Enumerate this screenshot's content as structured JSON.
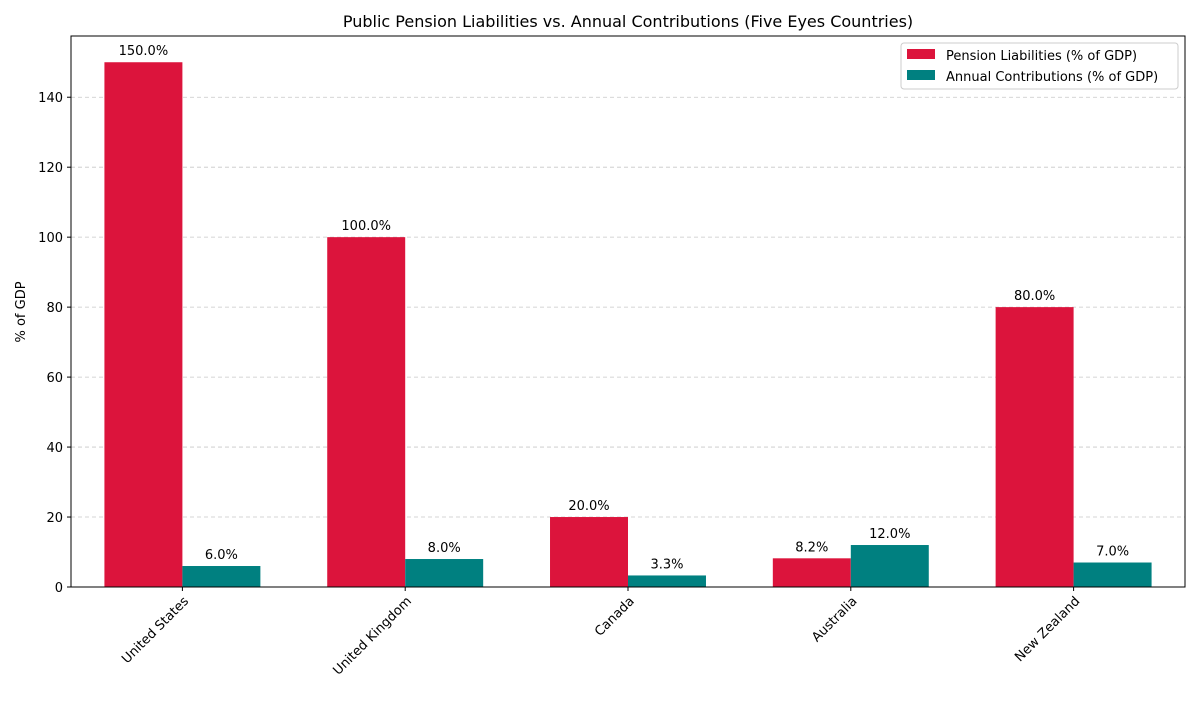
{
  "chart_data": {
    "type": "bar",
    "title": "Public Pension Liabilities vs. Annual Contributions (Five Eyes Countries)",
    "xlabel": "",
    "ylabel": "% of GDP",
    "categories": [
      "United States",
      "United Kingdom",
      "Canada",
      "Australia",
      "New Zealand"
    ],
    "series": [
      {
        "name": "Pension Liabilities (% of GDP)",
        "color": "#dc143c",
        "values": [
          150.0,
          100.0,
          20.0,
          8.2,
          80.0
        ],
        "labels": [
          "150.0%",
          "100.0%",
          "20.0%",
          "8.2%",
          "80.0%"
        ]
      },
      {
        "name": "Annual Contributions (% of GDP)",
        "color": "#008080",
        "values": [
          6.0,
          8.0,
          3.3,
          12.0,
          7.0
        ],
        "labels": [
          "6.0%",
          "8.0%",
          "3.3%",
          "12.0%",
          "7.0%"
        ]
      }
    ],
    "ylim": [
      0,
      157.5
    ],
    "yticks": [
      0,
      20,
      40,
      60,
      80,
      100,
      120,
      140
    ],
    "grid": "y-dashed",
    "legend_position": "top-right",
    "xtick_rotation": 45
  }
}
